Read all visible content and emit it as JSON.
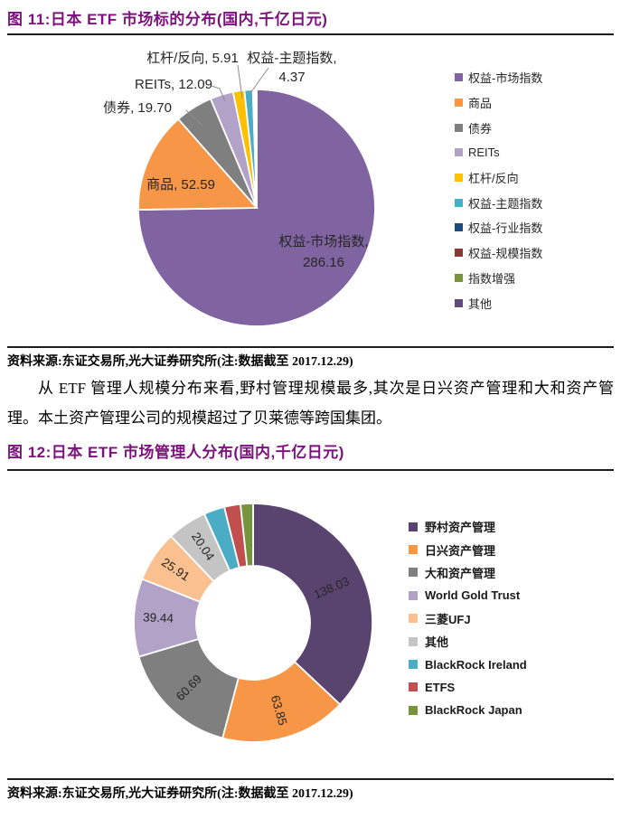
{
  "colors": {
    "caption_accent": "#7D117D",
    "rule": "#1C1C1C",
    "data_label_text": "#262626"
  },
  "figure11": {
    "caption": "图 11:日本 ETF 市场标的分布(国内,千亿日元)",
    "source_note": "资料来源:东证交易所,光大证券研究所(注:数据截至 2017.12.29)"
  },
  "body_text": "从 ETF 管理人规模分布来看,野村管理规模最多,其次是日兴资产管理和大和资产管理。本土资产管理公司的规模超过了贝莱德等跨国集团。",
  "figure12": {
    "caption": "图 12:日本 ETF 市场管理人分布(国内,千亿日元)",
    "source_note": "资料来源:东证交易所,光大证券研究所(注:数据截至 2017.12.29)"
  },
  "chart_data": [
    {
      "type": "pie",
      "title": "日本 ETF 市场标的分布(国内,千亿日元)",
      "legend_position": "right",
      "series": [
        {
          "label": "权益-市场指数",
          "value": 286.16,
          "color": "#8064A2",
          "data_label": "权益-市场指数, 286.16"
        },
        {
          "label": "商品",
          "value": 52.59,
          "color": "#F79646",
          "data_label": "商品, 52.59"
        },
        {
          "label": "债券",
          "value": 19.7,
          "color": "#7F7F7F",
          "data_label": "债券, 19.70"
        },
        {
          "label": "REITs",
          "value": 12.09,
          "color": "#B3A2C7",
          "data_label": "REITs, 12.09"
        },
        {
          "label": "杠杆/反向",
          "value": 5.91,
          "color": "#FFC000",
          "data_label": "杠杆/反向, 5.91"
        },
        {
          "label": "权益-主题指数",
          "value": 4.37,
          "color": "#4BACC6",
          "data_label": "权益-主题指数, 4.37"
        },
        {
          "label": "权益-行业指数",
          "value": 0.7,
          "color": "#1F497D",
          "estimated": true
        },
        {
          "label": "权益-规模指数",
          "value": 0.5,
          "color": "#8C3836",
          "estimated": true
        },
        {
          "label": "指数增强",
          "value": 0.4,
          "color": "#77933C",
          "estimated": true
        },
        {
          "label": "其他",
          "value": 0.4,
          "color": "#604A7B",
          "estimated": true
        }
      ]
    },
    {
      "type": "pie",
      "subtype": "donut",
      "title": "日本 ETF 市场管理人分布(国内,千亿日元)",
      "legend_position": "right",
      "series": [
        {
          "label": "野村资产管理",
          "value": 138.03,
          "color": "#594470",
          "data_label": "138.03"
        },
        {
          "label": "日兴资产管理",
          "value": 63.85,
          "color": "#F79646",
          "data_label": "63.85"
        },
        {
          "label": "大和资产管理",
          "value": 60.69,
          "color": "#7F7F7F",
          "data_label": "60.69"
        },
        {
          "label": "World Gold Trust",
          "value": 39.44,
          "color": "#B3A2C7",
          "data_label": "39.44"
        },
        {
          "label": "三菱UFJ",
          "value": 25.91,
          "color": "#FAC090",
          "data_label": "25.91"
        },
        {
          "label": "其他",
          "value": 20.04,
          "color": "#C4C4C4",
          "data_label": "20.04"
        },
        {
          "label": "BlackRock Ireland",
          "value": 10.5,
          "color": "#4BACC6",
          "estimated": true
        },
        {
          "label": "ETFS",
          "value": 8.2,
          "color": "#C0504D",
          "estimated": true
        },
        {
          "label": "BlackRock Japan",
          "value": 6.3,
          "color": "#77933C",
          "estimated": true
        }
      ]
    }
  ]
}
